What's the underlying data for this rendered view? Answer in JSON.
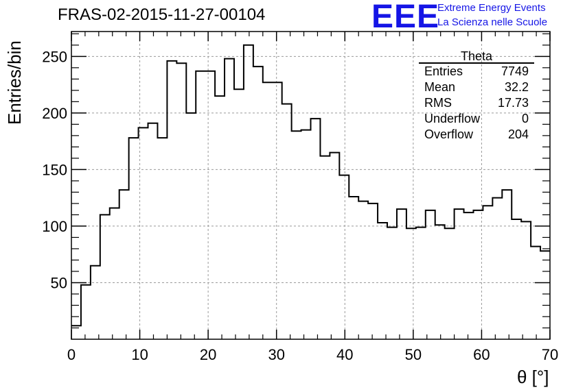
{
  "title": "FRAS-02-2015-11-27-00104",
  "logo": {
    "mark": "EEE",
    "line1": "Extreme Energy Events",
    "line2": "La Scienza nelle Scuole",
    "color": "#1515e6"
  },
  "stats": {
    "title": "Theta",
    "rows": [
      {
        "label": "Entries",
        "value": "7749"
      },
      {
        "label": "Mean",
        "value": "32.2"
      },
      {
        "label": "RMS",
        "value": "17.73"
      },
      {
        "label": "Underflow",
        "value": "0"
      },
      {
        "label": "Overflow",
        "value": "204"
      }
    ]
  },
  "chart_data": {
    "type": "bar",
    "title": "FRAS-02-2015-11-27-00104",
    "xlabel": "θ [°]",
    "ylabel": "Entries/bin",
    "xlim": [
      0,
      70
    ],
    "ylim": [
      0,
      272
    ],
    "x_ticks": [
      "0",
      "10",
      "20",
      "30",
      "40",
      "50",
      "60",
      "70"
    ],
    "y_ticks": [
      "50",
      "100",
      "150",
      "200",
      "250"
    ],
    "grid": true,
    "bin_width": 1.4,
    "values": [
      12,
      48,
      65,
      110,
      116,
      132,
      178,
      187,
      191,
      178,
      246,
      244,
      200,
      237,
      237,
      215,
      248,
      221,
      260,
      241,
      227,
      227,
      208,
      184,
      185,
      195,
      162,
      165,
      145,
      126,
      122,
      120,
      103,
      99,
      115,
      98,
      99,
      114,
      101,
      98,
      115,
      112,
      114,
      118,
      125,
      132,
      106,
      104,
      82,
      78
    ]
  }
}
